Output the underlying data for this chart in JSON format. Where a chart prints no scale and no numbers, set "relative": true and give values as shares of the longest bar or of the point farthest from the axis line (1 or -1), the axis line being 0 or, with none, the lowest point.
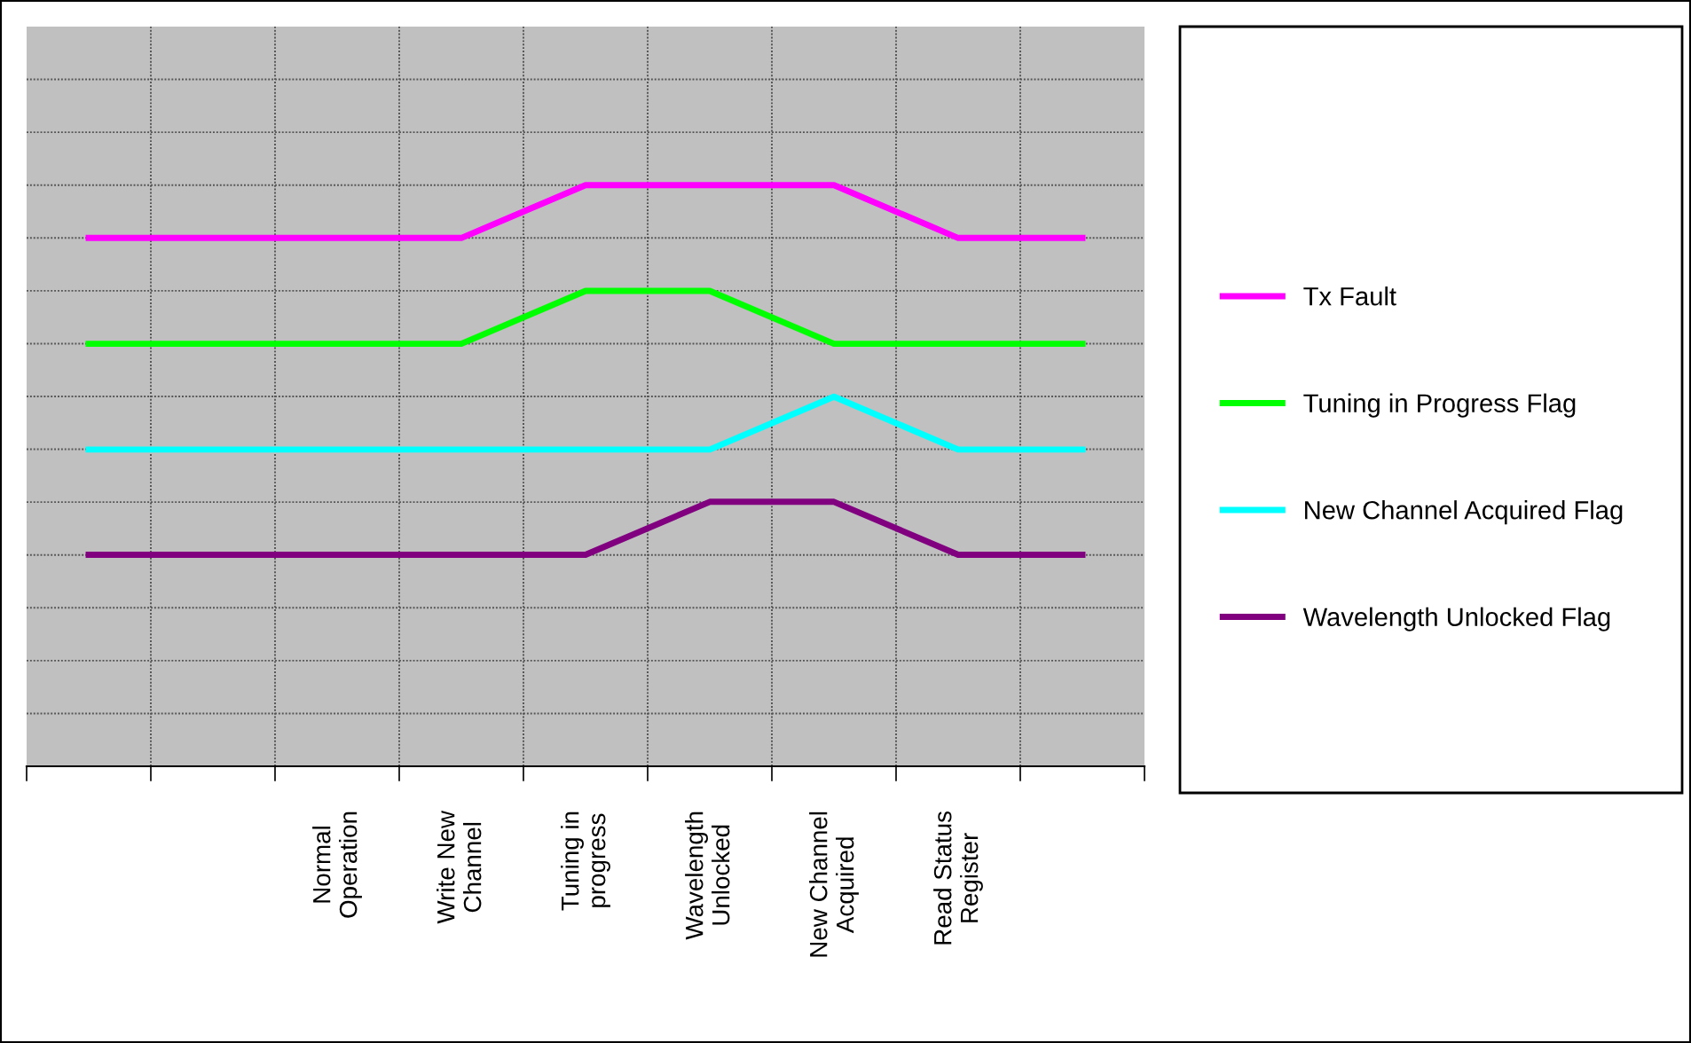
{
  "chart_data": {
    "type": "line",
    "relative": true,
    "categories": [
      null,
      null,
      "Normal Operation",
      "Write New Channel",
      "Tuning in progress",
      "Wavelength Unlocked",
      "New Channel Acquired",
      "Read Status Register",
      null
    ],
    "series": [
      {
        "name": "Tx Fault",
        "color": "#ff00ff",
        "values": [
          0.909,
          0.909,
          0.909,
          0.909,
          1,
          1,
          1,
          0.909,
          0.909
        ]
      },
      {
        "name": "Tuning in Progress Flag",
        "color": "#00ff00",
        "values": [
          0.727,
          0.727,
          0.727,
          0.727,
          0.818,
          0.818,
          0.727,
          0.727,
          0.727
        ]
      },
      {
        "name": "New Channel Acquired Flag",
        "color": "#00ffff",
        "values": [
          0.545,
          0.545,
          0.545,
          0.545,
          0.545,
          0.545,
          0.636,
          0.545,
          0.545
        ]
      },
      {
        "name": "Wavelength Unlocked Flag",
        "color": "#800080",
        "values": [
          0.364,
          0.364,
          0.364,
          0.364,
          0.364,
          0.455,
          0.455,
          0.364,
          0.364
        ]
      }
    ],
    "grid": true,
    "legend": "right",
    "marker": "none",
    "line_style": "solid"
  }
}
